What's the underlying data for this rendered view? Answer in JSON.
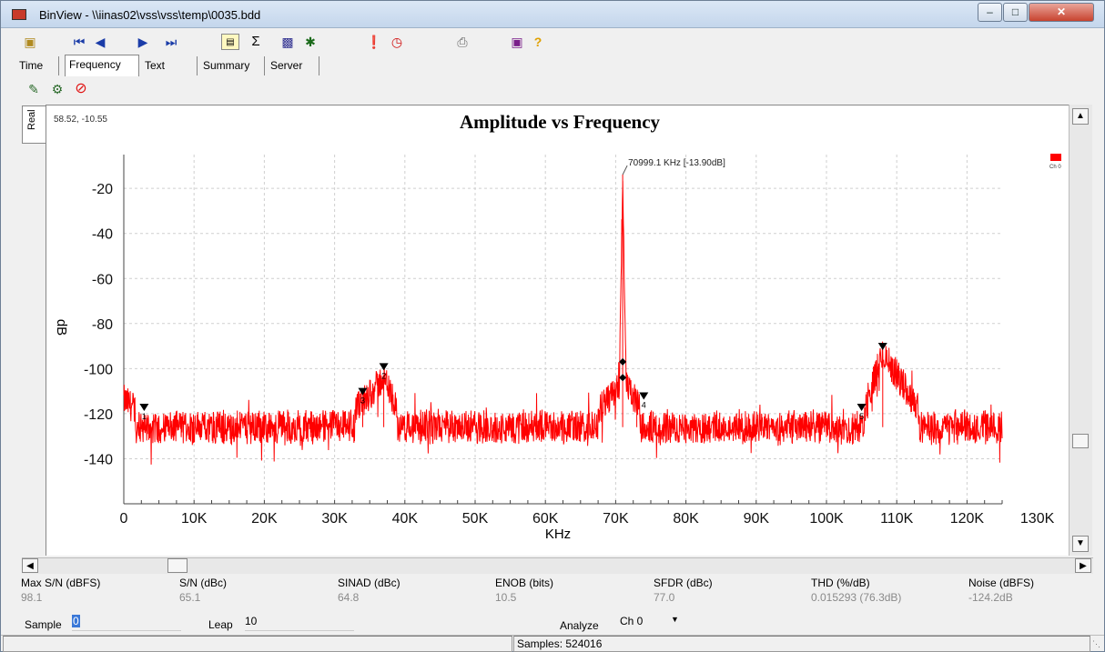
{
  "window": {
    "title": "BinView - \\\\iinas02\\vss\\vss\\temp\\0035.bdd"
  },
  "tabs": [
    {
      "label": "Time"
    },
    {
      "label": "Frequency"
    },
    {
      "label": "Text"
    },
    {
      "label": "Summary"
    },
    {
      "label": "Server"
    }
  ],
  "view_tab": {
    "label": "Real"
  },
  "plot": {
    "cursor_readout": "58.52, -10.55",
    "legend_label": "Ch 0",
    "peak_annotation": "70999.1 KHz [-13.90dB]"
  },
  "colors": {
    "trace": "#ff0000",
    "marker": "#000000"
  },
  "chart_data": {
    "type": "line",
    "title": "Amplitude vs Frequency",
    "xlabel": "KHz",
    "ylabel": "dB",
    "xlim": [
      0,
      130000
    ],
    "ylim": [
      -160,
      -5
    ],
    "xticks": [
      0,
      10000,
      20000,
      30000,
      40000,
      50000,
      60000,
      70000,
      80000,
      90000,
      100000,
      110000,
      120000,
      130000
    ],
    "xtick_labels": [
      "0",
      "10K",
      "20K",
      "30K",
      "40K",
      "50K",
      "60K",
      "70K",
      "80K",
      "90K",
      "100K",
      "110K",
      "120K",
      "130K"
    ],
    "yticks": [
      -20,
      -40,
      -60,
      -80,
      -100,
      -120,
      -140
    ],
    "ytick_labels": [
      "-20",
      "-40",
      "-60",
      "-80",
      "-100",
      "-120",
      "-140"
    ],
    "grid": true,
    "legend": "top-right",
    "series": [
      {
        "name": "Ch 0",
        "x": [
          0,
          2900,
          10000,
          20000,
          30000,
          34000,
          37000,
          40000,
          50000,
          60000,
          66000,
          69000,
          70500,
          70999.1,
          71500,
          73000,
          74000,
          80000,
          90000,
          100000,
          105000,
          108000,
          115000,
          125000
        ],
        "y": [
          -114,
          -121,
          -127,
          -128,
          -127,
          -115,
          -104,
          -126,
          -127,
          -126,
          -122,
          -114,
          -108,
          -13.9,
          -108,
          -115,
          -122,
          -127,
          -128,
          -127,
          -122,
          -93,
          -127,
          -126
        ]
      }
    ],
    "markers": [
      {
        "label": "1",
        "x": 2900,
        "y": -118
      },
      {
        "label": "2",
        "x": 37000,
        "y": -100
      },
      {
        "label": "3",
        "x": 34000,
        "y": -111
      },
      {
        "label": "4",
        "x": 74000,
        "y": -113
      },
      {
        "label": "5",
        "x": 105000,
        "y": -118
      },
      {
        "label": "",
        "x": 108000,
        "y": -91
      }
    ],
    "peak_x": 70999.1,
    "peak_y": -13.9
  },
  "stats": [
    {
      "label": "Max S/N (dBFS)",
      "value": "98.1"
    },
    {
      "label": "S/N (dBc)",
      "value": "65.1"
    },
    {
      "label": "SINAD (dBc)",
      "value": "64.8"
    },
    {
      "label": "ENOB (bits)",
      "value": "10.5"
    },
    {
      "label": "SFDR (dBc)",
      "value": "77.0"
    },
    {
      "label": "THD (%/dB)",
      "value": "0.015293 (76.3dB)"
    },
    {
      "label": "Noise (dBFS)",
      "value": "-124.2dB"
    }
  ],
  "controls": {
    "sample_label": "Sample",
    "sample_value": "0",
    "leap_label": "Leap",
    "leap_value": "10",
    "analyze_label": "Analyze",
    "analyze_value": "Ch 0"
  },
  "status": {
    "samples": "Samples: 524016"
  }
}
